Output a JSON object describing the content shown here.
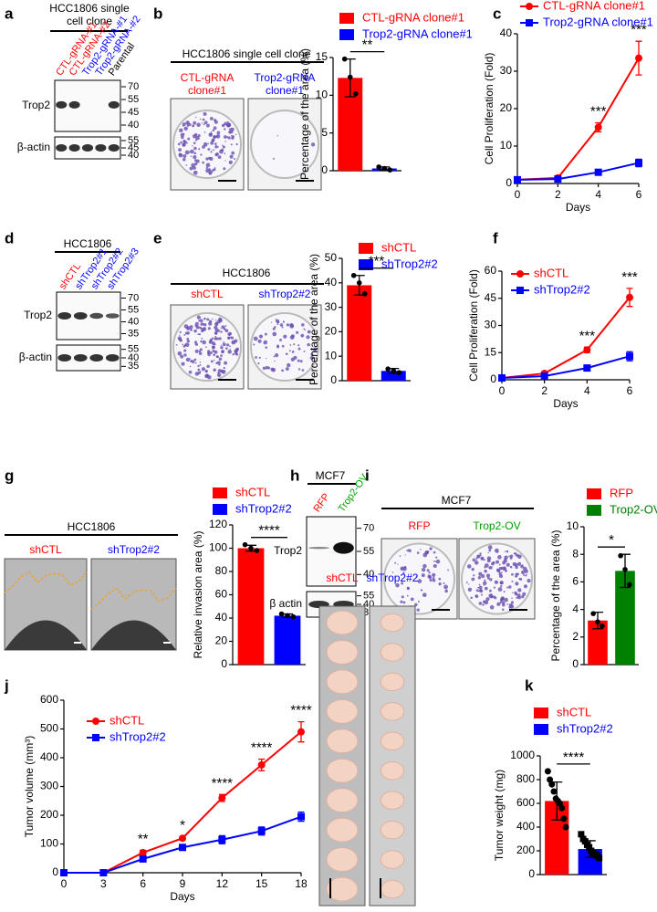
{
  "panel_labels": [
    "a",
    "b",
    "c",
    "d",
    "e",
    "f",
    "g",
    "h",
    "i",
    "j",
    "k"
  ],
  "blots": [
    {
      "header": [
        "HCC1806 single",
        "cell clone"
      ],
      "lanes": [
        "CTL-gRNA-#1",
        "CTL-gRNA-#2",
        "Trop2-gRNA-#1",
        "Trop2-gRNA-#2",
        "Parental"
      ],
      "lane_colors": [
        "#ff0000",
        "#ff0000",
        "#0000ff",
        "#0000ff",
        "#000000"
      ],
      "rows": [
        {
          "name": "Trop2",
          "markers": [
            "70",
            "55",
            "45",
            "40"
          ]
        },
        {
          "name": "β-actin",
          "markers": [
            "55",
            "45",
            "40"
          ]
        }
      ]
    },
    {
      "header": [
        "HCC1806"
      ],
      "lanes": [
        "shCTL",
        "shTrop2#1",
        "shTrop2#2",
        "shTrop2#3"
      ],
      "lane_colors": [
        "#ff0000",
        "#0000ff",
        "#0000ff",
        "#0000ff"
      ],
      "rows": [
        {
          "name": "Trop2",
          "markers": [
            "70",
            "55",
            "40",
            "35"
          ]
        },
        {
          "name": "β-actin",
          "markers": [
            "55",
            "40",
            "35"
          ]
        }
      ]
    },
    {
      "header": [
        "MCF7"
      ],
      "lanes": [
        "RFP",
        "Trop2-OV"
      ],
      "lane_colors": [
        "#ff0000",
        "#00a000"
      ],
      "rows": [
        {
          "name": "Trop2",
          "markers": [
            "70",
            "55",
            "40"
          ]
        },
        {
          "name": "β actin",
          "markers": [
            "55",
            "40",
            "35"
          ]
        }
      ]
    }
  ],
  "photos": [
    {
      "header": "HCC1806 single cell clone",
      "captions": [
        [
          "CTL-gRNA",
          "clone#1"
        ],
        [
          "Trop2-gRNA",
          "clone#1"
        ]
      ],
      "caption_colors": [
        "#ff0000",
        "#0000ff"
      ]
    },
    {
      "header": "HCC1806",
      "captions": [
        [
          "shCTL"
        ],
        [
          "shTrop2#2"
        ]
      ],
      "caption_colors": [
        "#ff0000",
        "#0000ff"
      ]
    },
    {
      "header": "HCC1806",
      "captions": [
        [
          "shCTL"
        ],
        [
          "shTrop2#2"
        ]
      ],
      "caption_colors": [
        "#ff0000",
        "#0000ff"
      ]
    },
    {
      "header": "MCF7",
      "captions": [
        [
          "RFP"
        ],
        [
          "Trop2-OV"
        ]
      ],
      "caption_colors": [
        "#ff0000",
        "#00a000"
      ]
    },
    {
      "captions": [
        [
          "shCTL"
        ],
        [
          "shTrop2#2"
        ]
      ],
      "caption_colors": [
        "#ff0000",
        "#0000ff"
      ]
    }
  ],
  "chart_data": [
    {
      "type": "bar",
      "ylabel": "Percentage of the area (%)",
      "ylim": [
        0,
        15
      ],
      "yticks": [
        0,
        5,
        10,
        15
      ],
      "series": [
        {
          "name": "CTL-gRNA clone#1",
          "color": "#ff0000",
          "values": [
            12.3
          ],
          "errors": [
            2.5
          ],
          "points": [
            [
              14.8,
              12.4,
              10.2
            ]
          ]
        },
        {
          "name": "Trop2-gRNA clone#1",
          "color": "#0000ff",
          "values": [
            0.3
          ],
          "errors": [
            0.2
          ],
          "points": [
            [
              0.5,
              0.3,
              0.1
            ]
          ]
        }
      ],
      "annotations": [
        {
          "text": "**"
        }
      ]
    },
    {
      "type": "line",
      "xlabel": "Days",
      "ylabel": "Cell Proliferation (Fold)",
      "x": [
        0,
        2,
        4,
        6
      ],
      "xlim": [
        0,
        6
      ],
      "xticks": [
        0,
        2,
        4,
        6
      ],
      "ylim": [
        0,
        40
      ],
      "yticks": [
        0,
        10,
        20,
        30,
        40
      ],
      "series": [
        {
          "name": "CTL-gRNA clone#1",
          "color": "#ff0000",
          "marker": "circle",
          "values": [
            1,
            1.5,
            15,
            33.5
          ],
          "errors": [
            0,
            0.5,
            1.2,
            4.5
          ]
        },
        {
          "name": "Trop2-gRNA clone#1",
          "color": "#0000ff",
          "marker": "square",
          "values": [
            1,
            1.2,
            3,
            5.5
          ],
          "errors": [
            0,
            0.3,
            0.4,
            1
          ]
        }
      ],
      "annotations": [
        {
          "x": 4,
          "text": "***"
        },
        {
          "x": 6,
          "text": "***"
        }
      ]
    },
    {
      "type": "bar",
      "ylabel": "Percentage of the area (%)",
      "ylim": [
        0,
        50
      ],
      "yticks": [
        0,
        10,
        20,
        30,
        40,
        50
      ],
      "series": [
        {
          "name": "shCTL",
          "color": "#ff0000",
          "values": [
            39
          ],
          "errors": [
            4
          ],
          "points": [
            [
              43,
              40,
              35.5
            ]
          ]
        },
        {
          "name": "shTrop2#2",
          "color": "#0000ff",
          "values": [
            4
          ],
          "errors": [
            1
          ],
          "points": [
            [
              4.8,
              4,
              3.3
            ]
          ]
        }
      ],
      "annotations": [
        {
          "text": "***"
        }
      ]
    },
    {
      "type": "line",
      "xlabel": "Days",
      "ylabel": "Cell Proliferation (Fold)",
      "x": [
        0,
        2,
        4,
        6
      ],
      "xlim": [
        0,
        6
      ],
      "xticks": [
        0,
        2,
        4,
        6
      ],
      "ylim": [
        0,
        60
      ],
      "yticks": [
        0,
        15,
        30,
        45,
        60
      ],
      "series": [
        {
          "name": "shCTL",
          "color": "#ff0000",
          "marker": "circle",
          "values": [
            1,
            3.5,
            16.5,
            45.5
          ],
          "errors": [
            0,
            1,
            1.5,
            5
          ]
        },
        {
          "name": "shTrop2#2",
          "color": "#0000ff",
          "marker": "square",
          "values": [
            1,
            2,
            6.5,
            13
          ],
          "errors": [
            0,
            0.5,
            1,
            2.5
          ]
        }
      ],
      "annotations": [
        {
          "x": 4,
          "text": "***"
        },
        {
          "x": 6,
          "text": "***"
        }
      ]
    },
    {
      "type": "bar",
      "ylabel": "Relative invasion area (%)",
      "ylim": [
        0,
        120
      ],
      "yticks": [
        0,
        20,
        40,
        60,
        80,
        100,
        120
      ],
      "series": [
        {
          "name": "shCTL",
          "color": "#ff0000",
          "values": [
            100
          ],
          "errors": [
            2.5
          ],
          "points": [
            [
              103,
              100,
              98
            ]
          ]
        },
        {
          "name": "shTrop2#2",
          "color": "#0000ff",
          "values": [
            42
          ],
          "errors": [
            1.5
          ],
          "points": [
            [
              43.5,
              42,
              41
            ]
          ]
        }
      ],
      "annotations": [
        {
          "text": "****"
        }
      ]
    },
    {
      "type": "bar",
      "ylabel": "Percentage of the area (%)",
      "ylim": [
        0,
        10
      ],
      "yticks": [
        0,
        2,
        4,
        6,
        8,
        10
      ],
      "series": [
        {
          "name": "RFP",
          "color": "#ff0000",
          "values": [
            3.2
          ],
          "errors": [
            0.6
          ],
          "points": [
            [
              3.7,
              3.1,
              2.8
            ]
          ]
        },
        {
          "name": "Trop2-OV",
          "color": "#008000",
          "values": [
            6.8
          ],
          "errors": [
            1.2
          ],
          "points": [
            [
              7.9,
              6.9,
              5.8
            ]
          ]
        }
      ],
      "annotations": [
        {
          "text": "*"
        }
      ]
    },
    {
      "type": "line",
      "xlabel": "Days",
      "ylabel": "Tumor volume (mm³)",
      "x": [
        0,
        3,
        6,
        9,
        12,
        15,
        18
      ],
      "xlim": [
        0,
        18
      ],
      "xticks": [
        0,
        3,
        6,
        9,
        12,
        15,
        18
      ],
      "ylim": [
        0,
        600
      ],
      "yticks": [
        0,
        100,
        200,
        300,
        400,
        500,
        600
      ],
      "series": [
        {
          "name": "shCTL",
          "color": "#ff0000",
          "marker": "circle",
          "values": [
            0,
            0,
            70,
            120,
            260,
            375,
            490
          ],
          "errors": [
            0,
            0,
            8,
            6,
            12,
            20,
            35
          ]
        },
        {
          "name": "shTrop2#2",
          "color": "#0000ff",
          "marker": "square",
          "values": [
            0,
            0,
            48,
            88,
            115,
            145,
            195
          ],
          "errors": [
            0,
            0,
            6,
            6,
            14,
            14,
            16
          ]
        }
      ],
      "annotations": [
        {
          "x": 6,
          "text": "**"
        },
        {
          "x": 9,
          "text": "*"
        },
        {
          "x": 12,
          "text": "****"
        },
        {
          "x": 15,
          "text": "****"
        },
        {
          "x": 18,
          "text": "****"
        }
      ]
    },
    {
      "type": "bar",
      "ylabel": "Tumor weight (mg)",
      "ylim": [
        0,
        1000
      ],
      "yticks": [
        0,
        200,
        400,
        600,
        800,
        1000
      ],
      "series": [
        {
          "name": "shCTL",
          "color": "#ff0000",
          "marker": "circle",
          "values": [
            620
          ],
          "errors": [
            160
          ],
          "points": [
            [
              870,
              800,
              760,
              700,
              640,
              620,
              600,
              560,
              470,
              400
            ]
          ]
        },
        {
          "name": "shTrop2#2",
          "color": "#0000ff",
          "marker": "square",
          "values": [
            215
          ],
          "errors": [
            70
          ],
          "points": [
            [
              340,
              300,
              280,
              250,
              230,
              200,
              180,
              170,
              160,
              140
            ]
          ]
        }
      ],
      "annotations": [
        {
          "text": "****"
        }
      ]
    }
  ]
}
